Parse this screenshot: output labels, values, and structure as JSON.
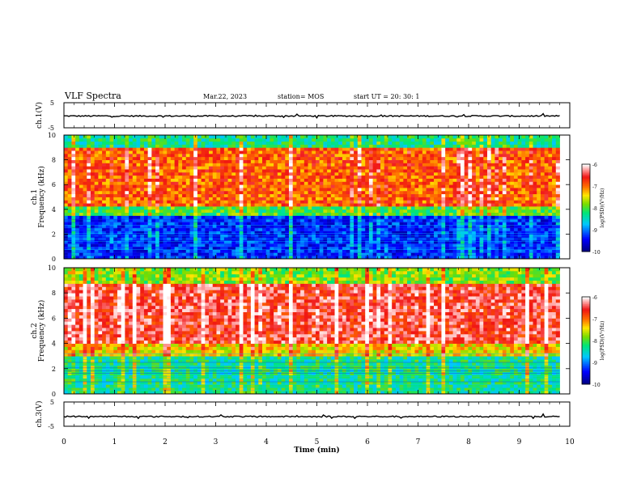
{
  "header": {
    "title": "VLF Spectra",
    "date": "Mar.22, 2023",
    "station": "station= MOS",
    "start": "start  UT  =   20: 30: 1"
  },
  "chart_data": [
    {
      "type": "line",
      "panel": "ch1-voltage",
      "ylabel": "ch.1(V)",
      "ylim": [
        -5,
        5
      ],
      "yticks": [
        "5",
        "-5"
      ],
      "xlim": [
        0,
        10
      ],
      "series": [
        {
          "values_note": "",
          "x": [
            0,
            9.8
          ],
          "y": [
            -0.3,
            -0.3
          ]
        }
      ]
    },
    {
      "type": "heatmap",
      "panel": "ch1-spectrogram",
      "ylabel_top": "ch.1",
      "ylabel": "Frequency (kHz)",
      "ylim": [
        0,
        10
      ],
      "yticks": [
        "0",
        "2",
        "4",
        "6",
        "8",
        "10"
      ],
      "xlim": [
        0,
        9.8
      ],
      "colorbar": {
        "label": "log(PSD)(V²/Hz)",
        "range": [
          -10,
          -6
        ],
        "ticks": [
          "-6",
          "-7",
          "-8",
          "-9",
          "-10"
        ]
      },
      "bands": [
        {
          "freq_khz": [
            0,
            3.5
          ],
          "log_psd": -9.3
        },
        {
          "freq_khz": [
            3.5,
            4.2
          ],
          "log_psd": -8.0
        },
        {
          "freq_khz": [
            4.2,
            9.0
          ],
          "log_psd": -6.9
        },
        {
          "freq_khz": [
            9.0,
            10
          ],
          "log_psd": -8.3
        }
      ]
    },
    {
      "type": "heatmap",
      "panel": "ch2-spectrogram",
      "ylabel_top": "ch.2",
      "ylabel": "Frequency (kHz)",
      "ylim": [
        0,
        10
      ],
      "yticks": [
        "0",
        "2",
        "4",
        "6",
        "8",
        "10"
      ],
      "xlim": [
        0,
        9.8
      ],
      "colorbar": {
        "label": "log(PSD)(V²/Hz)",
        "range": [
          -10,
          -6
        ],
        "ticks": [
          "-6",
          "-7",
          "-8",
          "-9",
          "-10"
        ]
      },
      "bands": [
        {
          "freq_khz": [
            0,
            3.0
          ],
          "log_psd": -8.3
        },
        {
          "freq_khz": [
            3.0,
            4.0
          ],
          "log_psd": -7.4
        },
        {
          "freq_khz": [
            4.0,
            8.8
          ],
          "log_psd": -6.5
        },
        {
          "freq_khz": [
            8.8,
            10
          ],
          "log_psd": -7.8
        }
      ]
    },
    {
      "type": "line",
      "panel": "ch3-voltage",
      "ylabel": "ch.3(V)",
      "ylim": [
        -5,
        5
      ],
      "yticks": [
        "5",
        "-5"
      ],
      "xlim": [
        0,
        10
      ],
      "xlabel": "Time (min)",
      "xticks": [
        "0",
        "1",
        "2",
        "3",
        "4",
        "5",
        "6",
        "7",
        "8",
        "9",
        "10"
      ],
      "series": [
        {
          "x": [
            0,
            9.8
          ],
          "y": [
            -1.0,
            -1.0
          ]
        }
      ]
    }
  ]
}
